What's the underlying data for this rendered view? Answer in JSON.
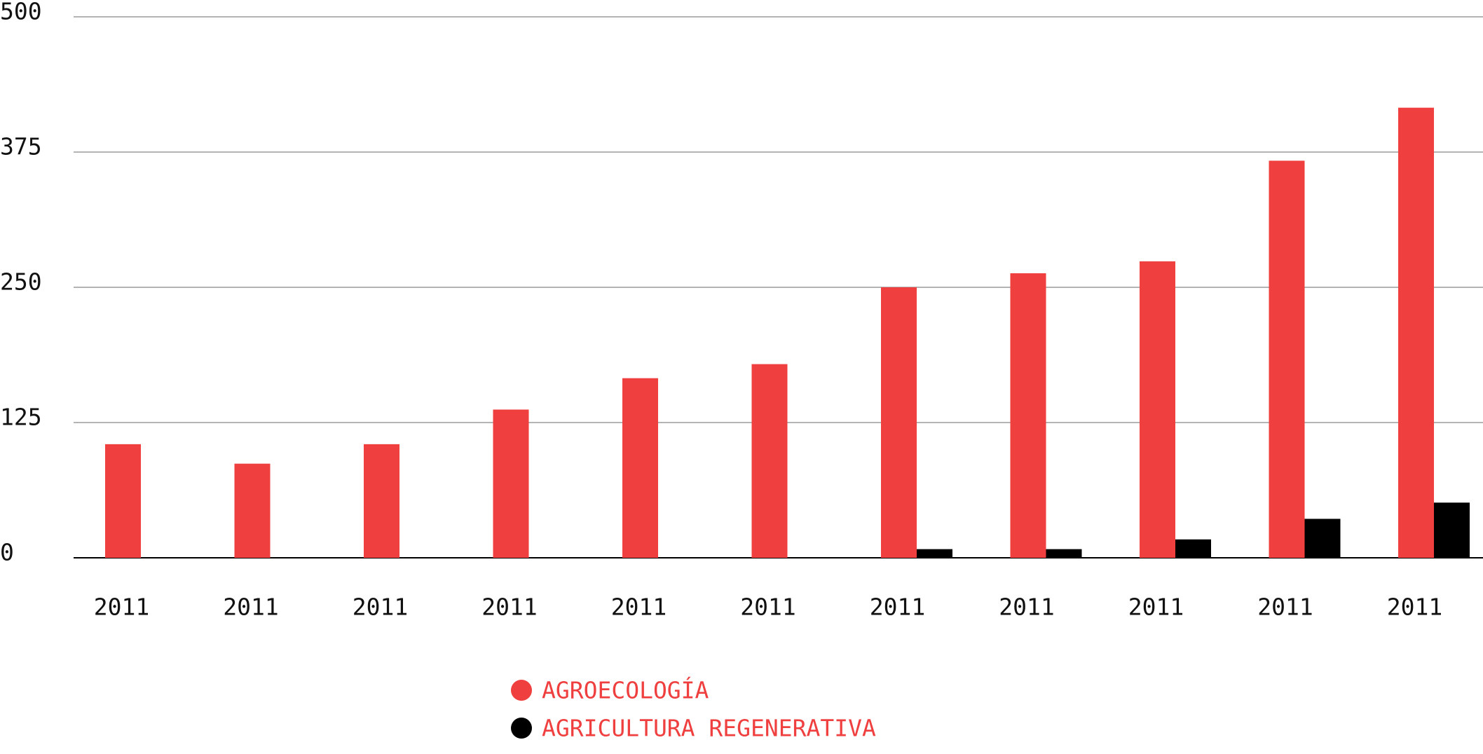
{
  "chart_data": {
    "type": "bar",
    "categories": [
      "2011",
      "2011",
      "2011",
      "2011",
      "2011",
      "2011",
      "2011",
      "2011",
      "2011",
      "2011",
      "2011"
    ],
    "series": [
      {
        "name": "AGROECOLOGÍA",
        "color": "#ef3f3f",
        "values": [
          105,
          87,
          105,
          137,
          166,
          179,
          250,
          263,
          274,
          367,
          416
        ]
      },
      {
        "name": "AGRICULTURA REGENERATIVA",
        "color": "#000000",
        "values": [
          0,
          0,
          0,
          0,
          0,
          0,
          8,
          8,
          17,
          36,
          51
        ]
      }
    ],
    "ylim": [
      0,
      500
    ],
    "yticks": [
      0,
      125,
      250,
      375,
      500
    ],
    "grid": true,
    "legend_position": "bottom",
    "legend_text_color": "#ef3f3f"
  }
}
